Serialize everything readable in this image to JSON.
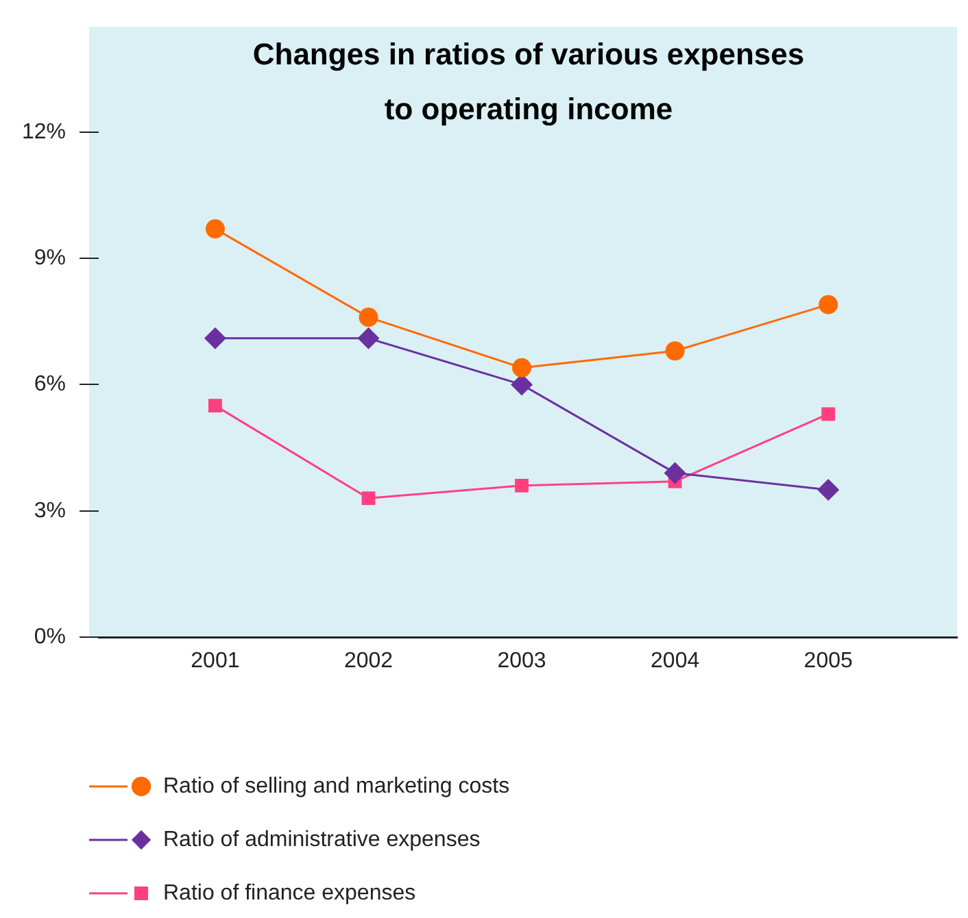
{
  "chart_data": {
    "type": "line",
    "title": "Changes in ratios of various expenses to operating income",
    "categories": [
      "2001",
      "2002",
      "2003",
      "2004",
      "2005"
    ],
    "series": [
      {
        "name": "Ratio of selling and marketing costs",
        "color": "#ff6a00",
        "marker": "circle",
        "values": [
          9.7,
          7.6,
          6.4,
          6.8,
          7.9
        ]
      },
      {
        "name": "Ratio of administrative expenses",
        "color": "#6b30a0",
        "marker": "diamond",
        "values": [
          7.1,
          7.1,
          6.0,
          3.9,
          3.5
        ]
      },
      {
        "name": "Ratio of finance expenses",
        "color": "#ff4080",
        "marker": "square",
        "values": [
          5.5,
          3.3,
          3.6,
          3.7,
          5.3
        ]
      }
    ],
    "ylim": [
      0,
      14.5
    ],
    "yticks": [
      {
        "value": 0,
        "label": "0%"
      },
      {
        "value": 3,
        "label": "3%"
      },
      {
        "value": 6,
        "label": "6%"
      },
      {
        "value": 9,
        "label": "9%"
      },
      {
        "value": 12,
        "label": "12%"
      }
    ],
    "grid": false,
    "legend": "bottom",
    "line_style": "solid"
  }
}
